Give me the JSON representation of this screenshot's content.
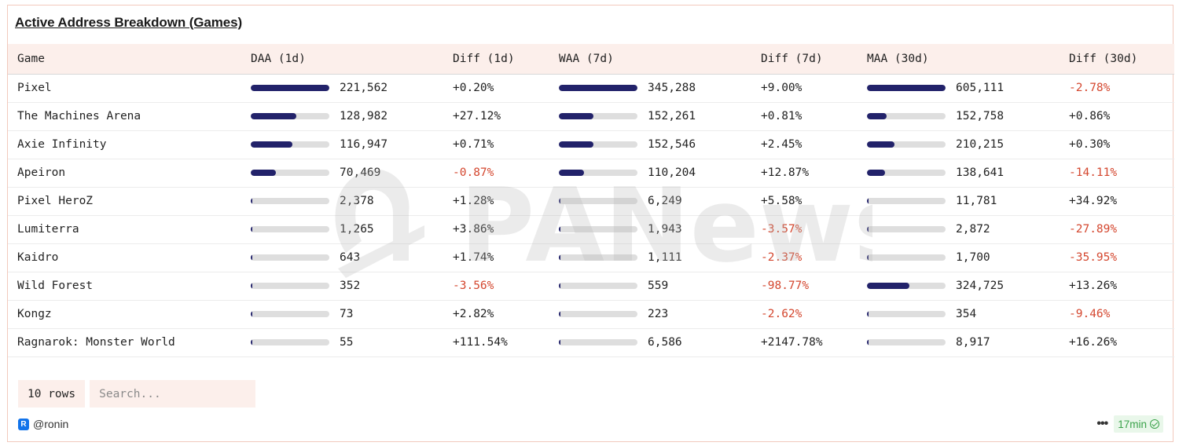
{
  "title": "Active Address Breakdown (Games)",
  "columns": [
    "Game",
    "DAA (1d)",
    "Diff (1d)",
    "WAA (7d)",
    "Diff (7d)",
    "MAA (30d)",
    "Diff (30d)"
  ],
  "rows": [
    {
      "game": "Pixel",
      "daa": "221,562",
      "daa_level": 1.0,
      "diff_1d": "+0.20%",
      "waa": "345,288",
      "waa_level": 1.0,
      "diff_7d": "+9.00%",
      "maa": "605,111",
      "maa_level": 1.0,
      "diff_30d": "-2.78%"
    },
    {
      "game": "The Machines Arena",
      "daa": "128,982",
      "daa_level": 0.582,
      "diff_1d": "+27.12%",
      "waa": "152,261",
      "waa_level": 0.441,
      "diff_7d": "+0.81%",
      "maa": "152,758",
      "maa_level": 0.252,
      "diff_30d": "+0.86%"
    },
    {
      "game": "Axie Infinity",
      "daa": "116,947",
      "daa_level": 0.528,
      "diff_1d": "+0.71%",
      "waa": "152,546",
      "waa_level": 0.442,
      "diff_7d": "+2.45%",
      "maa": "210,215",
      "maa_level": 0.347,
      "diff_30d": "+0.30%"
    },
    {
      "game": "Apeiron",
      "daa": "70,469",
      "daa_level": 0.318,
      "diff_1d": "-0.87%",
      "waa": "110,204",
      "waa_level": 0.319,
      "diff_7d": "+12.87%",
      "maa": "138,641",
      "maa_level": 0.229,
      "diff_30d": "-14.11%"
    },
    {
      "game": "Pixel HeroZ",
      "daa": "2,378",
      "daa_level": 0.011,
      "diff_1d": "+1.28%",
      "waa": "6,249",
      "waa_level": 0.018,
      "diff_7d": "+5.58%",
      "maa": "11,781",
      "maa_level": 0.019,
      "diff_30d": "+34.92%"
    },
    {
      "game": "Lumiterra",
      "daa": "1,265",
      "daa_level": 0.006,
      "diff_1d": "+3.86%",
      "waa": "1,943",
      "waa_level": 0.006,
      "diff_7d": "-3.57%",
      "maa": "2,872",
      "maa_level": 0.005,
      "diff_30d": "-27.89%"
    },
    {
      "game": "Kaidro",
      "daa": "643",
      "daa_level": 0.003,
      "diff_1d": "+1.74%",
      "waa": "1,111",
      "waa_level": 0.003,
      "diff_7d": "-2.37%",
      "maa": "1,700",
      "maa_level": 0.003,
      "diff_30d": "-35.95%"
    },
    {
      "game": "Wild Forest",
      "daa": "352",
      "daa_level": 0.002,
      "diff_1d": "-3.56%",
      "waa": "559",
      "waa_level": 0.002,
      "diff_7d": "-98.77%",
      "maa": "324,725",
      "maa_level": 0.537,
      "diff_30d": "+13.26%"
    },
    {
      "game": "Kongz",
      "daa": "73",
      "daa_level": 0.0003,
      "diff_1d": "+2.82%",
      "waa": "223",
      "waa_level": 0.0006,
      "diff_7d": "-2.62%",
      "maa": "354",
      "maa_level": 0.0006,
      "diff_30d": "-9.46%"
    },
    {
      "game": "Ragnarok: Monster World",
      "daa": "55",
      "daa_level": 0.0002,
      "diff_1d": "+111.54%",
      "waa": "6,586",
      "waa_level": 0.019,
      "diff_7d": "+2147.78%",
      "maa": "8,917",
      "maa_level": 0.015,
      "diff_30d": "+16.26%"
    }
  ],
  "footer": {
    "rows_count": "10 rows",
    "search_placeholder": "Search...",
    "owner": "@ronin",
    "owner_icon": "ronin-logo-icon",
    "more_icon": "more-dots-icon",
    "freshness": "17min",
    "freshness_icon": "check-circle-icon"
  },
  "watermark_text": "PANews",
  "colors": {
    "bar_fill": "#22226a",
    "bar_track": "#dedede",
    "negative": "#d4472f",
    "header_bg": "#fcefeb",
    "border": "#f2c9bd",
    "fresh_green": "#3aa24a"
  }
}
